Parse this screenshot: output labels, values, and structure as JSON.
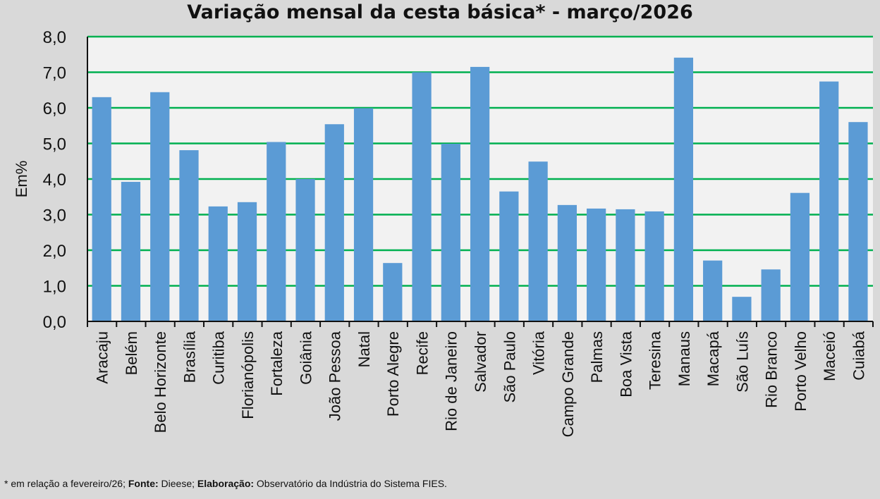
{
  "chart_data": {
    "type": "bar",
    "title": "Variação  mensal da cesta básica* - março/2026",
    "xlabel": "",
    "ylabel": "Em%",
    "ylim": [
      0,
      8
    ],
    "yticks": [
      "0,0",
      "1,0",
      "2,0",
      "3,0",
      "4,0",
      "5,0",
      "6,0",
      "7,0",
      "8,0"
    ],
    "grid": true,
    "categories": [
      "Aracaju",
      "Belém",
      "Belo Horizonte",
      "Brasília",
      "Curitiba",
      "Florianópolis",
      "Fortaleza",
      "Goiânia",
      "João Pessoa",
      "Natal",
      "Porto Alegre",
      "Recife",
      "Rio de Janeiro",
      "Salvador",
      "São Paulo",
      "Vitória",
      "Campo Grande",
      "Palmas",
      "Boa Vista",
      "Teresina",
      "Manaus",
      "Macapá",
      "São Luís",
      "Rio Branco",
      "Porto Velho",
      "Maceió",
      "Cuiabá"
    ],
    "values": [
      6.3,
      3.92,
      6.44,
      4.81,
      3.23,
      3.35,
      5.04,
      4.0,
      5.54,
      5.99,
      1.64,
      7.0,
      4.99,
      7.15,
      3.65,
      4.49,
      3.27,
      3.17,
      3.15,
      3.09,
      7.41,
      1.71,
      0.69,
      1.46,
      3.61,
      6.74,
      5.6
    ],
    "colors": {
      "bar": "#5b9bd5",
      "grid": "#00b050",
      "plot_bg": "#f2f2f2"
    }
  },
  "footnote": {
    "prefix": "* em relação a fevereiro/26; ",
    "fonte_label": "Fonte:",
    "fonte": " Dieese; ",
    "elab_label": "Elaboração:",
    "elab": " Observatório da Indústria do Sistema FIES."
  }
}
